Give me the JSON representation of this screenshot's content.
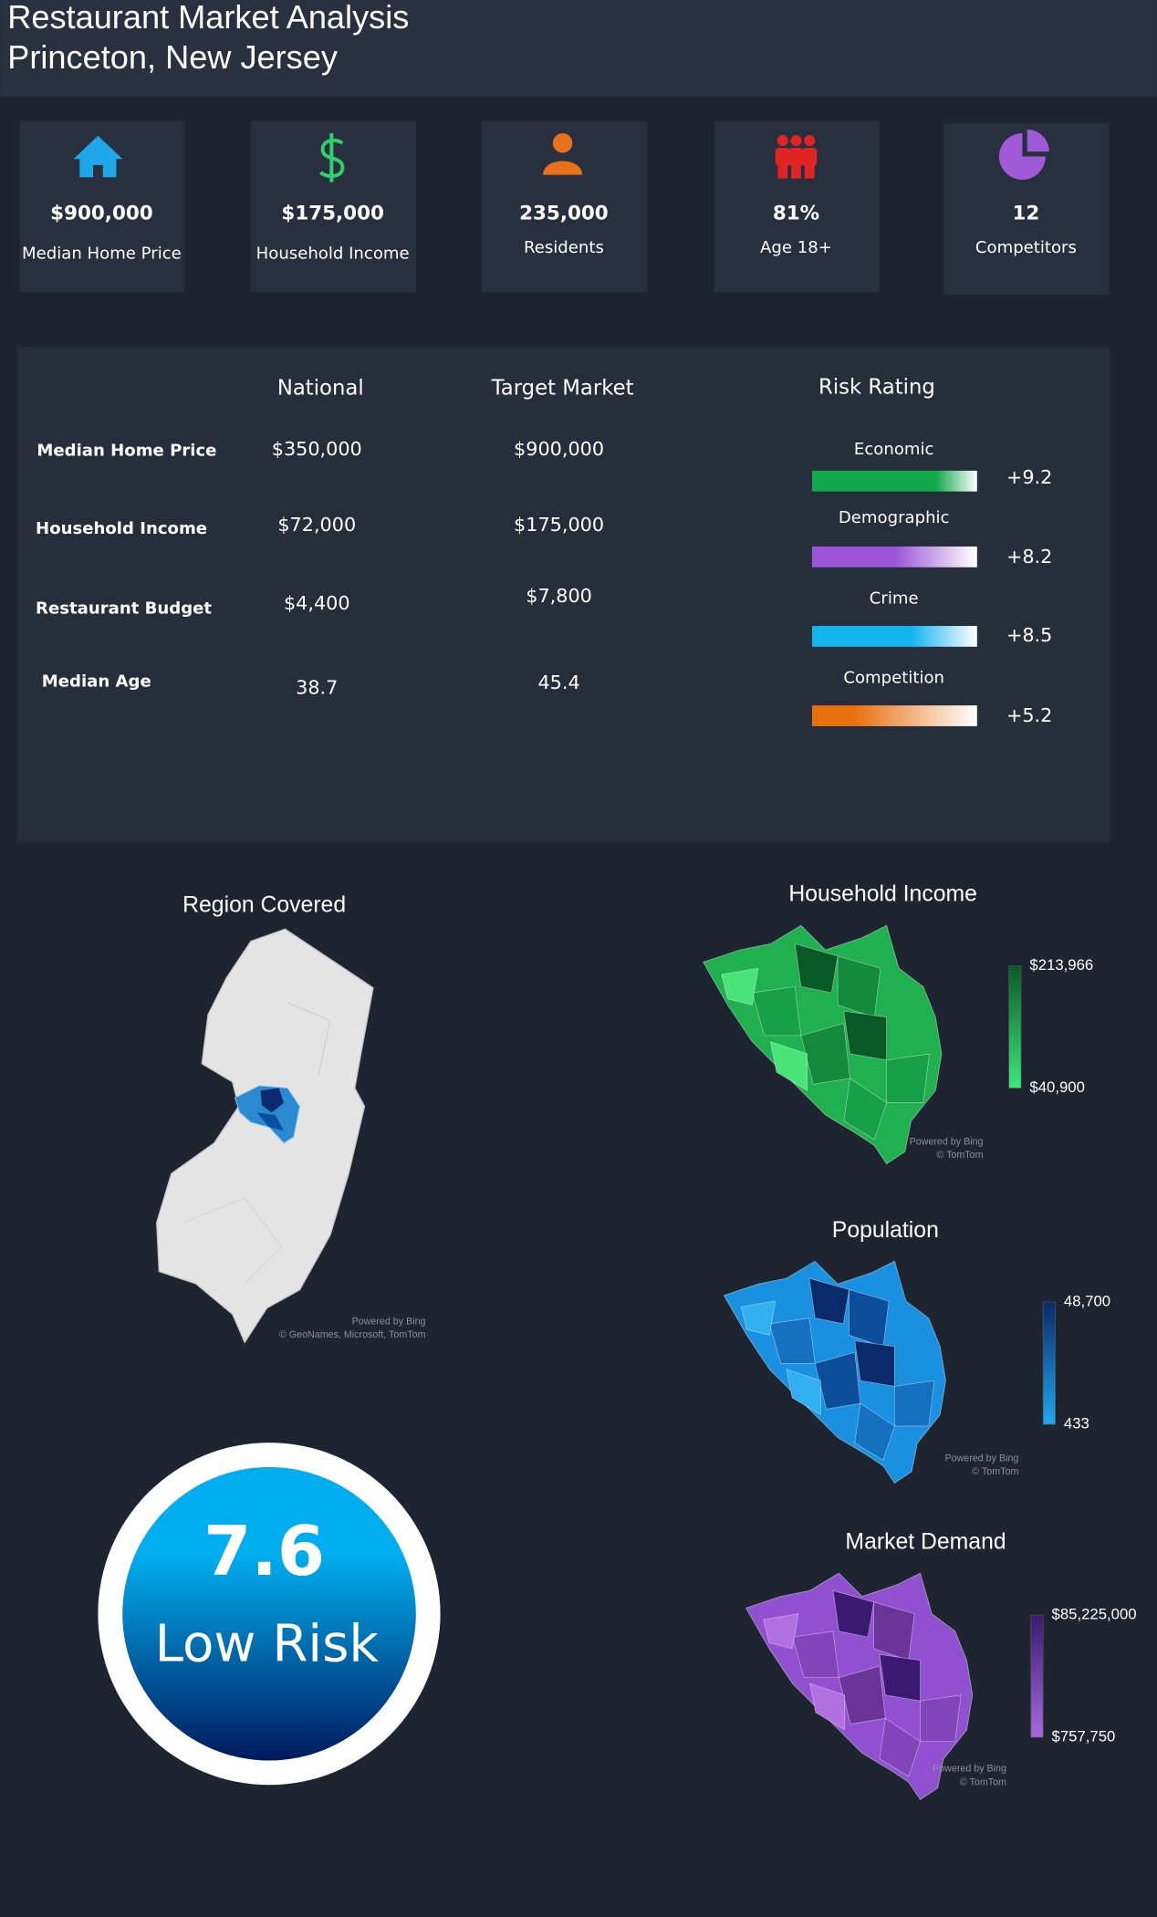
{
  "header": {
    "title": "Restaurant Market Analysis",
    "subtitle": "Princeton, New Jersey"
  },
  "kpis": [
    {
      "value": "$900,000",
      "label": "Median Home Price"
    },
    {
      "value": "$175,000",
      "label": "Household Income"
    },
    {
      "value": "235,000",
      "label": "Residents"
    },
    {
      "value": "81%",
      "label": "Age 18+"
    },
    {
      "value": "12",
      "label": "Competitors"
    }
  ],
  "comparison": {
    "columns": [
      "National",
      "Target Market"
    ],
    "rows": [
      {
        "label": "Median Home Price",
        "national": "$350,000",
        "target": "$900,000"
      },
      {
        "label": "Household Income",
        "national": "$72,000",
        "target": "$175,000"
      },
      {
        "label": "Restaurant Budget",
        "national": "$4,400",
        "target": "$7,800"
      },
      {
        "label": "Median Age",
        "national": "38.7",
        "target": "45.4"
      }
    ]
  },
  "risk": {
    "title": "Risk Rating",
    "items": [
      {
        "label": "Economic",
        "value": "+9.2",
        "color": "#12a84c"
      },
      {
        "label": "Demographic",
        "value": "+8.2",
        "color": "#9b55d6"
      },
      {
        "label": "Crime",
        "value": "+8.5",
        "color": "#12b4f0"
      },
      {
        "label": "Competition",
        "value": "+5.2",
        "color": "#e8700e"
      }
    ]
  },
  "maps": [
    {
      "title": "Region Covered",
      "attribution": [
        "Powered by Bing",
        "© GeoNames, Microsoft, TomTom"
      ]
    },
    {
      "title": "Household Income",
      "legend_max": "$213,966",
      "legend_min": "$40,900",
      "attribution": [
        "Powered by Bing",
        "© TomTom"
      ]
    },
    {
      "title": "Population",
      "legend_max": "48,700",
      "legend_min": "433",
      "attribution": [
        "Powered by Bing",
        "© TomTom"
      ]
    },
    {
      "title": "Market Demand",
      "legend_max": "$85,225,000",
      "legend_min": "$757,750",
      "attribution": [
        "Powered by Bing",
        "© TomTom"
      ]
    }
  ],
  "score": {
    "value": "7.6",
    "label": "Low Risk"
  }
}
